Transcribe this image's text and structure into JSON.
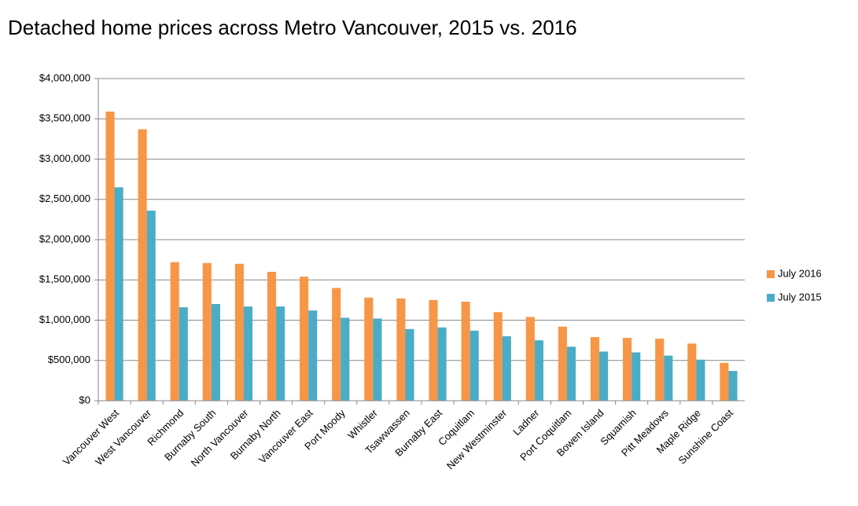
{
  "chart_data": {
    "type": "bar",
    "title": "Detached home prices across Metro Vancouver, 2015 vs. 2016",
    "categories": [
      "Vancouver West",
      "West Vancouver",
      "Richmond",
      "Burnaby South",
      "North Vancouver",
      "Burnaby North",
      "Vancouver East",
      "Port Moody",
      "Whistler",
      "Tsawwassen",
      "Burnaby East",
      "Coquitlam",
      "New Westminster",
      "Ladner",
      "Port Coquitlam",
      "Bowen Island",
      "Squamish",
      "Pitt Meadows",
      "Maple Ridge",
      "Sunshine Coast"
    ],
    "series": [
      {
        "name": "July 2016",
        "color": "#f79646",
        "values": [
          3590000,
          3370000,
          1720000,
          1710000,
          1700000,
          1600000,
          1540000,
          1400000,
          1280000,
          1270000,
          1250000,
          1230000,
          1100000,
          1040000,
          920000,
          790000,
          780000,
          770000,
          710000,
          470000
        ]
      },
      {
        "name": "July 2015",
        "color": "#4bacc6",
        "values": [
          2650000,
          2360000,
          1160000,
          1200000,
          1170000,
          1170000,
          1120000,
          1030000,
          1020000,
          890000,
          910000,
          870000,
          800000,
          750000,
          670000,
          610000,
          600000,
          560000,
          510000,
          370000
        ]
      }
    ],
    "ylim": [
      0,
      4000000
    ],
    "yticks": [
      {
        "value": 0,
        "label": "$0"
      },
      {
        "value": 500000,
        "label": "$500,000"
      },
      {
        "value": 1000000,
        "label": "$1,000,000"
      },
      {
        "value": 1500000,
        "label": "$1,500,000"
      },
      {
        "value": 2000000,
        "label": "$2,000,000"
      },
      {
        "value": 2500000,
        "label": "$2,500,000"
      },
      {
        "value": 3000000,
        "label": "$3,000,000"
      },
      {
        "value": 3500000,
        "label": "$3,500,000"
      },
      {
        "value": 4000000,
        "label": "$4,000,000"
      }
    ],
    "grid": true,
    "legend": "right"
  }
}
